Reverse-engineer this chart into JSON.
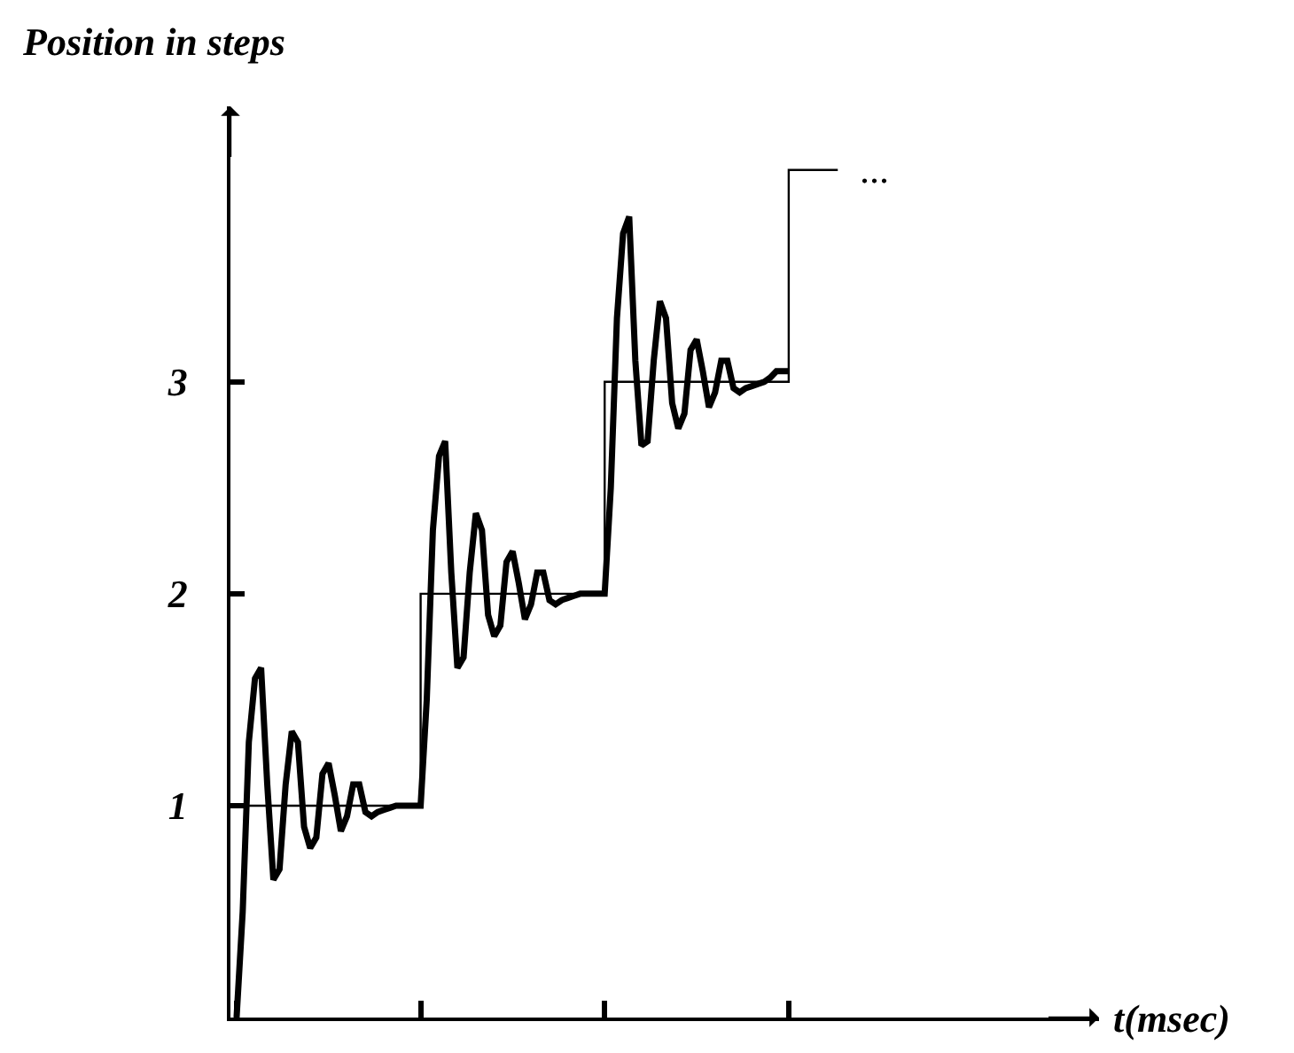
{
  "chart_data": {
    "type": "line",
    "ylabel": "Position in steps",
    "categories": [
      null,
      null,
      null,
      null,
      null,
      null,
      null,
      null,
      null,
      null,
      null,
      null,
      null,
      null,
      null,
      null,
      null,
      null,
      null,
      null,
      null,
      null,
      null,
      null,
      null,
      null,
      null,
      null,
      null,
      null,
      null,
      null,
      null,
      null,
      null,
      null,
      null,
      null,
      null,
      null,
      null,
      null,
      null,
      null,
      null,
      null,
      null,
      null,
      null,
      null,
      null,
      null,
      null,
      null,
      null,
      null,
      null,
      null,
      null,
      null,
      null,
      null,
      null,
      null,
      null,
      null,
      null,
      null,
      null,
      null,
      null,
      null,
      null,
      null,
      null,
      null,
      null,
      null,
      null,
      null,
      null,
      null,
      null,
      null,
      null,
      null,
      null,
      null,
      null,
      null,
      null,
      null,
      null,
      null,
      null,
      null,
      null,
      null,
      null
    ],
    "series": [
      {
        "type": "step",
        "color": "#000000",
        "values": [
          1,
          1,
          1,
          1,
          1,
          1,
          1,
          1,
          1,
          1,
          1,
          1,
          1,
          1,
          1,
          1,
          1,
          1,
          1,
          1,
          1,
          1,
          1,
          1,
          1,
          1,
          1,
          1,
          1,
          1,
          2,
          2,
          2,
          2,
          2,
          2,
          2,
          2,
          2,
          2,
          2,
          2,
          2,
          2,
          2,
          2,
          2,
          2,
          2,
          2,
          2,
          2,
          2,
          2,
          2,
          2,
          2,
          2,
          2,
          2,
          3,
          3,
          3,
          3,
          3,
          3,
          3,
          3,
          3,
          3,
          3,
          3,
          3,
          3,
          3,
          3,
          3,
          3,
          3,
          3,
          3,
          3,
          3,
          3,
          3,
          3,
          3,
          3,
          3,
          3,
          4,
          4,
          4,
          4,
          4,
          4,
          4,
          4,
          4
        ]
      },
      {
        "color": "#000000",
        "values": [
          0,
          0.5,
          1.3,
          1.6,
          1.65,
          1.1,
          0.65,
          0.7,
          1.1,
          1.35,
          1.3,
          0.9,
          0.8,
          0.85,
          1.15,
          1.2,
          1.05,
          0.88,
          0.95,
          1.1,
          1.1,
          0.97,
          0.95,
          0.97,
          0.98,
          0.99,
          1,
          1,
          1,
          1,
          1,
          1.5,
          2.3,
          2.65,
          2.72,
          2.1,
          1.65,
          1.7,
          2.1,
          2.38,
          2.3,
          1.9,
          1.8,
          1.85,
          2.15,
          2.2,
          2.05,
          1.88,
          1.95,
          2.1,
          2.1,
          1.97,
          1.95,
          1.97,
          1.98,
          1.99,
          2,
          2,
          2,
          2,
          2,
          2.5,
          3.3,
          3.7,
          3.78,
          3.1,
          2.7,
          2.72,
          3.1,
          3.38,
          3.3,
          2.9,
          2.78,
          2.85,
          3.15,
          3.2,
          3.05,
          2.88,
          2.95,
          3.1,
          3.1,
          2.97,
          2.95,
          2.97,
          2.98,
          2.99,
          3,
          3.02,
          3.05,
          3.05,
          3.05,
          null,
          null,
          null,
          null,
          null,
          null,
          null,
          null
        ]
      }
    ],
    "ylim": [
      0,
      4.3
    ],
    "yticks": [
      1,
      2,
      3
    ],
    "annotations": [
      "...",
      "t(msec)"
    ]
  }
}
